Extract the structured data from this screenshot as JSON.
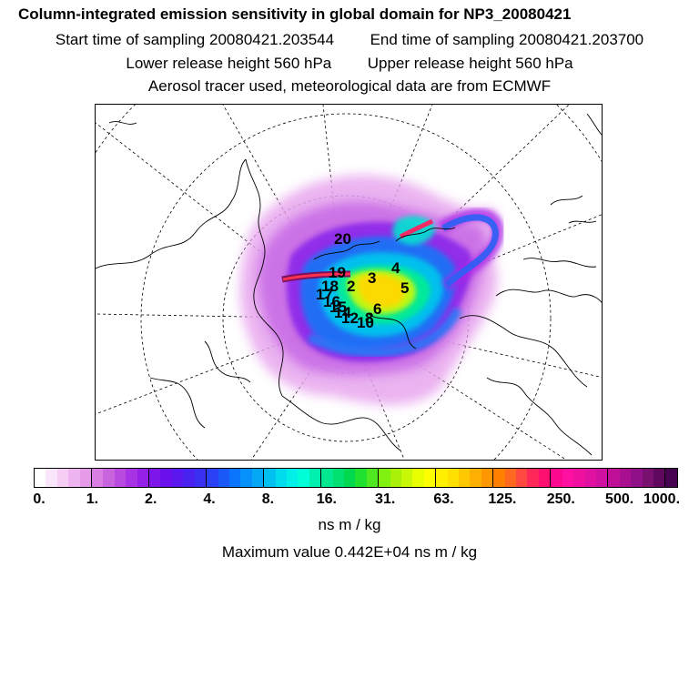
{
  "title": "Column-integrated emission sensitivity in global domain for NP3_20080421",
  "start_label": "Start time of sampling",
  "start_value": "20080421.203544",
  "end_label": "End time of sampling",
  "end_value": "20080421.203700",
  "lower_label": "Lower release height",
  "lower_value": "560 hPa",
  "upper_label": "Upper release height",
  "upper_value": "560 hPa",
  "aerosol_note": "Aerosol tracer used, meteorological data are from ECMWF",
  "map": {
    "projection": "polar-stereographic",
    "point_labels": [
      "1",
      "2",
      "3",
      "4",
      "5",
      "6",
      "7",
      "8",
      "9",
      "10",
      "11",
      "12",
      "13",
      "14",
      "15",
      "16",
      "17",
      "18",
      "19",
      "20"
    ]
  },
  "legend": {
    "tick_labels": [
      "0.",
      "1.",
      "2.",
      "4.",
      "8.",
      "16.",
      "31.",
      "63.",
      "125.",
      "250.",
      "500.",
      "1000."
    ],
    "units": "ns m / kg",
    "colors": [
      "#ffffff",
      "#fae6fa",
      "#f5cdf5",
      "#eeb4f0",
      "#e59be8",
      "#d97ee2",
      "#c864de",
      "#b84ae0",
      "#a832e4",
      "#9420e8",
      "#7e16ea",
      "#6a10ec",
      "#5a18ee",
      "#4a22f0",
      "#3a30f2",
      "#2a40f4",
      "#1a58f8",
      "#0a74fc",
      "#0690fa",
      "#04a8f4",
      "#00c0f0",
      "#00dcec",
      "#00f0e8",
      "#00ffd8",
      "#00f0b0",
      "#00e890",
      "#00e070",
      "#00d850",
      "#20e030",
      "#50e820",
      "#80f010",
      "#a8f008",
      "#c8f808",
      "#e8ff00",
      "#ffff00",
      "#fff000",
      "#ffe000",
      "#ffc800",
      "#ffb000",
      "#ff9800",
      "#ff8000",
      "#ff6820",
      "#ff4840",
      "#ff2858",
      "#ff1070",
      "#ff0890",
      "#ff10a0",
      "#f010a0",
      "#e010a0",
      "#d010a0",
      "#c01098",
      "#a81090",
      "#901088",
      "#781070",
      "#600860",
      "#480050"
    ]
  },
  "maximum_label": "Maximum value",
  "maximum_value": "0.442E+04",
  "maximum_units": "ns m / kg"
}
